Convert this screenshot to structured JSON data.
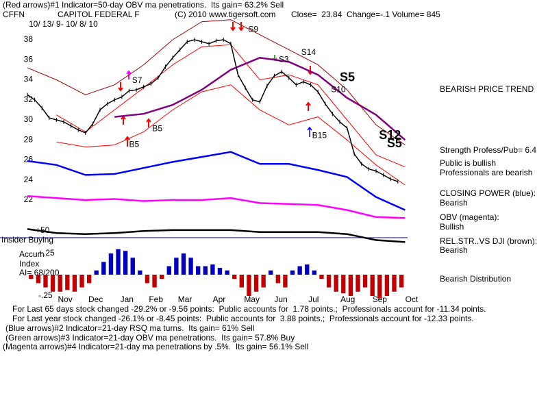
{
  "header": {
    "indicator1": "(Red arrows)#1 Indicator=50-day OBV ma penetrations.  Its gain= 63.2% Sell",
    "ticker": "CFFN",
    "company": "CAPITOL FEDERAL F",
    "copyright": "(C) 2010 www.tigersoft.com",
    "quote": "Close=  23.84  Change=-.1 Volume= 845",
    "dates": "10/ 13/ 9- 10/ 8/ 10"
  },
  "side": {
    "trend": "BEARISH PRICE TREND",
    "strength": "Strength Profess/Pub= 6.4",
    "public": "Public is bullish",
    "professionals": "Professionals are bearish",
    "cp_label": "CLOSING POWER (blue):",
    "cp_value": "Bearish",
    "obv_label": "OBV (magenta):",
    "obv_value": "Bullish",
    "rs_label": "REL.STR..VS DJI (brown):",
    "rs_value": "Bearish",
    "distribution": "Bearish Distribution"
  },
  "left": {
    "insider": "Insider Buying",
    "rs_mark": "+50",
    "accum1": "Accum",
    "accum2": "Index",
    "ai": "AI= 68/200"
  },
  "footer": [
    "For Last 65 days stock changed -29.2% or -9.56 points:  Public accounts for  1.78 points.;  Professionals account for -11.34 points.",
    "For Last year stock changed -26.1% or -8.45 points:  Public accounts for  3.88 points.;  Professionals account for -12.33 points.",
    "(Blue arrows)#2 Indicator=21-day RSQ ma turns.  Its gain= 61% Sell",
    "(Green arrows)#3 Indicator=21-day OBV ma penetrations.  Its gain= 57.8% Buy",
    "(Magenta arrows)#4 Indicator=21-day ma penetrations by .5%.  Its gain= 56.1% Sell"
  ],
  "chart_data": [
    {
      "type": "line",
      "color": "#000000",
      "xlim": [
        0,
        53
      ],
      "ylim": [
        18,
        40
      ],
      "yticks": [
        22,
        24,
        26,
        28,
        30,
        32,
        34,
        36,
        38
      ],
      "values": [
        32.5,
        32.0,
        31.2,
        30.2,
        30.0,
        29.8,
        29.4,
        29.0,
        28.7,
        29.6,
        31.0,
        31.6,
        32.0,
        32.3,
        32.9,
        33.0,
        33.3,
        33.6,
        34.2,
        35.3,
        36.2,
        37.0,
        37.8,
        38.0,
        37.8,
        37.6,
        37.9,
        38.0,
        37.6,
        34.5,
        33.2,
        32.0,
        31.8,
        33.4,
        34.4,
        34.8,
        34.2,
        33.5,
        33.8,
        33.5,
        32.8,
        31.6,
        30.6,
        29.8,
        29.2,
        26.6,
        25.6,
        25.1,
        24.9,
        24.5,
        24.1,
        23.84
      ],
      "series": [
        {
          "color": "#800080",
          "bold": true,
          "x": [
            0,
            4,
            8,
            12,
            16,
            20,
            24,
            28,
            32,
            36,
            40,
            44,
            48,
            52
          ],
          "values": [
            null,
            null,
            null,
            30.3,
            30.6,
            31.5,
            33.0,
            35.0,
            36.2,
            35.8,
            34.5,
            32.2,
            30.5,
            28.0
          ]
        },
        {
          "color": "#a00000",
          "x": [
            0,
            4,
            8,
            12,
            16,
            20,
            24,
            28,
            32,
            36,
            40,
            44,
            48,
            52
          ],
          "values": [
            35.2,
            34.0,
            32.5,
            33.5,
            35.5,
            38.0,
            39.8,
            40.0,
            38.5,
            37.0,
            35.5,
            33.0,
            29.5,
            27.5
          ]
        },
        {
          "color": "#ff0000",
          "x": [
            0,
            4,
            8,
            12,
            16,
            20,
            24,
            28,
            32,
            36,
            40,
            44,
            48,
            52
          ],
          "values": [
            null,
            27.8,
            27.3,
            27.5,
            28.8,
            31.0,
            32.8,
            33.5,
            31.0,
            29.5,
            30.3,
            28.0,
            25.5,
            23.5
          ]
        },
        {
          "color": "#ff0000",
          "x": [
            0,
            4,
            8,
            12,
            16,
            20,
            24,
            28,
            32,
            36,
            40,
            44,
            48,
            52
          ],
          "values": [
            null,
            30.5,
            28.8,
            31.0,
            33.2,
            35.5,
            37.3,
            37.5,
            34.0,
            34.5,
            33.5,
            30.0,
            26.5,
            25.3
          ]
        },
        {
          "color": "#0000ff",
          "bold": true,
          "x": [
            0,
            4,
            8,
            12,
            16,
            20,
            24,
            28,
            32,
            36,
            40,
            44,
            48,
            52
          ],
          "values": [
            25.9,
            25.5,
            24.5,
            24.6,
            25.2,
            25.8,
            26.3,
            26.8,
            25.6,
            25.6,
            25.0,
            24.3,
            22.3,
            21.0
          ]
        },
        {
          "color": "#ff00ff",
          "bold": true,
          "x": [
            0,
            4,
            8,
            12,
            16,
            20,
            24,
            28,
            32,
            36,
            40,
            44,
            48,
            52
          ],
          "values": [
            22.4,
            22.2,
            22.0,
            22.1,
            21.9,
            22.0,
            22.0,
            22.2,
            21.7,
            21.6,
            21.5,
            21.0,
            20.3,
            20.2
          ]
        },
        {
          "color": "#000000",
          "bold": true,
          "x": [
            0,
            4,
            8,
            12,
            16,
            20,
            24,
            28,
            32,
            36,
            40,
            44,
            48,
            52
          ],
          "values": [
            19.1,
            18.7,
            18.6,
            18.7,
            18.9,
            19.0,
            19.0,
            19.0,
            18.8,
            18.8,
            18.8,
            18.6,
            18.0,
            17.8
          ]
        }
      ],
      "annotations": [
        {
          "text": "S7",
          "x": 14.4,
          "y": 33.9
        },
        {
          "text": "B5",
          "x": 17.2,
          "y": 29.1
        },
        {
          "text": "B5",
          "x": 14,
          "y": 27.5
        },
        {
          "text": "S9",
          "x": 30.4,
          "y": 39
        },
        {
          "text": "S3",
          "x": 34.6,
          "y": 36
        },
        {
          "text": "S14",
          "x": 37.7,
          "y": 36.7
        },
        {
          "text": "S5",
          "x": 43,
          "y": 34.2,
          "large": true
        },
        {
          "text": "S10",
          "x": 41.8,
          "y": 33
        },
        {
          "text": "B15",
          "x": 39.2,
          "y": 28.4
        },
        {
          "text": "S12",
          "x": 48.4,
          "y": 28.4,
          "large": true
        },
        {
          "text": "S5",
          "x": 49.5,
          "y": 27.6,
          "large": true
        }
      ]
    },
    {
      "type": "bar",
      "xlim": [
        0,
        53
      ],
      "ylim": [
        -0.35,
        0.35
      ],
      "yticks": [
        {
          "value": 0.25,
          "label": "+.25"
        },
        {
          "value": -0.25,
          "label": "-.25"
        }
      ],
      "xticks": [
        {
          "value": 5.2,
          "label": "Nov"
        },
        {
          "value": 9.4,
          "label": "Dec"
        },
        {
          "value": 13.7,
          "label": "Jan"
        },
        {
          "value": 17.7,
          "label": "Feb"
        },
        {
          "value": 21.7,
          "label": "Mar"
        },
        {
          "value": 26.4,
          "label": "Apr"
        },
        {
          "value": 30.9,
          "label": "May"
        },
        {
          "value": 34.9,
          "label": "Jun"
        },
        {
          "value": 39.4,
          "label": "Jul"
        },
        {
          "value": 44.1,
          "label": "Aug"
        },
        {
          "value": 48.5,
          "label": "Sep"
        },
        {
          "value": 52.9,
          "label": "Oct"
        }
      ],
      "positive_color": "#0000c0",
      "negative_color": "#c00000",
      "values": [
        -0.05,
        -0.1,
        -0.15,
        -0.2,
        -0.2,
        -0.18,
        -0.2,
        -0.15,
        -0.1,
        0.05,
        0.15,
        0.25,
        0.3,
        0.28,
        0.2,
        0.05,
        -0.1,
        -0.15,
        -0.05,
        0.1,
        0.2,
        0.25,
        0.2,
        0.1,
        0.1,
        0.12,
        0.08,
        0.05,
        -0.05,
        -0.15,
        -0.25,
        -0.2,
        -0.15,
        0.05,
        -0.1,
        -0.15,
        0.05,
        0.1,
        0.12,
        0.05,
        -0.05,
        -0.15,
        -0.2,
        -0.22,
        -0.25,
        -0.2,
        -0.15,
        -0.25,
        -0.28,
        -0.25,
        -0.2,
        -0.15
      ]
    }
  ]
}
